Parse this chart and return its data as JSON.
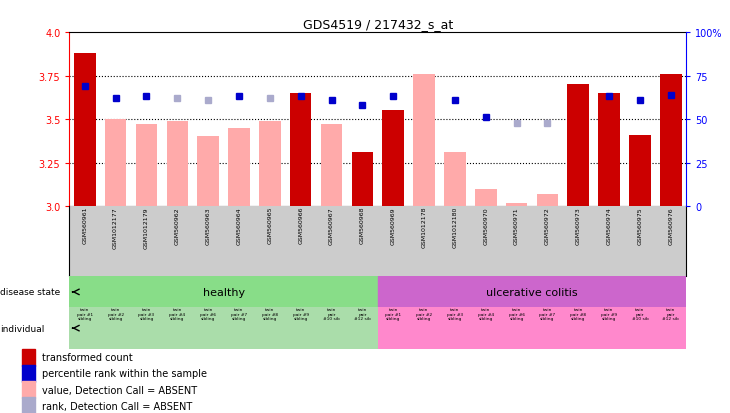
{
  "title": "GDS4519 / 217432_s_at",
  "samples": [
    "GSM560961",
    "GSM1012177",
    "GSM1012179",
    "GSM560962",
    "GSM560963",
    "GSM560964",
    "GSM560965",
    "GSM560966",
    "GSM560967",
    "GSM560968",
    "GSM560969",
    "GSM1012178",
    "GSM1012180",
    "GSM560970",
    "GSM560971",
    "GSM560972",
    "GSM560973",
    "GSM560974",
    "GSM560975",
    "GSM560976"
  ],
  "bar_values": [
    3.88,
    3.5,
    3.47,
    3.49,
    3.4,
    3.45,
    3.49,
    3.65,
    3.47,
    3.31,
    3.55,
    3.76,
    3.31,
    3.1,
    3.02,
    3.07,
    3.7,
    3.65,
    3.41,
    3.76
  ],
  "bar_absent": [
    false,
    true,
    true,
    true,
    true,
    true,
    true,
    false,
    true,
    false,
    false,
    true,
    true,
    true,
    true,
    true,
    false,
    false,
    false,
    false
  ],
  "rank_values": [
    0.69,
    0.62,
    0.63,
    0.62,
    0.61,
    0.63,
    0.62,
    0.63,
    0.61,
    0.58,
    0.63,
    null,
    0.61,
    0.51,
    0.48,
    0.48,
    null,
    0.63,
    0.61,
    0.64
  ],
  "rank_absent": [
    false,
    false,
    false,
    true,
    true,
    false,
    true,
    false,
    false,
    false,
    false,
    null,
    false,
    false,
    true,
    true,
    null,
    false,
    false,
    false
  ],
  "ylim_left": [
    3.0,
    4.0
  ],
  "ylim_right": [
    0,
    100
  ],
  "yticks_left": [
    3.0,
    3.25,
    3.5,
    3.75,
    4.0
  ],
  "yticks_right": [
    0,
    25,
    50,
    75,
    100
  ],
  "dotted_lines": [
    3.25,
    3.5,
    3.75
  ],
  "bar_color_present": "#cc0000",
  "bar_color_absent": "#ffaaaa",
  "rank_color_present": "#0000cc",
  "rank_color_absent": "#aaaacc",
  "healthy_color": "#88dd88",
  "uc_color": "#cc66cc",
  "sample_bg_color": "#cccccc",
  "indiv_healthy_color": "#aaddaa",
  "indiv_uc_color": "#ff88cc",
  "legend_items": [
    {
      "label": "transformed count",
      "color": "#cc0000"
    },
    {
      "label": "percentile rank within the sample",
      "color": "#0000cc"
    },
    {
      "label": "value, Detection Call = ABSENT",
      "color": "#ffaaaa"
    },
    {
      "label": "rank, Detection Call = ABSENT",
      "color": "#aaaacc"
    }
  ],
  "n_healthy": 10,
  "n_uc": 10,
  "individuals": [
    "twin\npair #1\nsibling",
    "twin\npair #2\nsibling",
    "twin\npair #3\nsibling",
    "twin\npair #4\nsibling",
    "twin\npair #6\nsibling",
    "twin\npair #7\nsibling",
    "twin\npair #8\nsibling",
    "twin\npair #9\nsibling",
    "twin\npair\n#10 sib",
    "twin\npair\n#12 sib",
    "twin\npair #1\nsibling",
    "twin\npair #2\nsibling",
    "twin\npair #3\nsibling",
    "twin\npair #4\nsibling",
    "twin\npair #6\nsibling",
    "twin\npair #7\nsibling",
    "twin\npair #8\nsibling",
    "twin\npair #9\nsibling",
    "twin\npair\n#10 sib",
    "twin\npair\n#12 sib"
  ]
}
